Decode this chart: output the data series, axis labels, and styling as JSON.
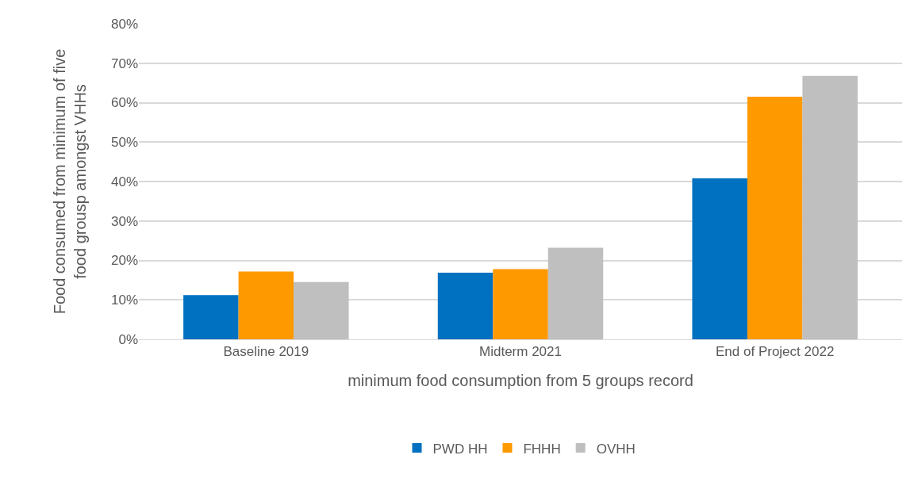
{
  "chart_data": {
    "type": "bar",
    "xlabel": "minimum food consumption from 5 groups record",
    "ylabel": "Food consumed from minimum of five food grousp amongst VHHs",
    "categories": [
      "Baseline 2019",
      "Midterm 2021",
      "End of Project 2022"
    ],
    "series": [
      {
        "name": "PWD HH",
        "color": "#0070c0",
        "values": [
          11.2,
          16.9,
          40.8
        ]
      },
      {
        "name": "FHHH",
        "color": "#ff9900",
        "values": [
          17.2,
          17.8,
          61.5
        ]
      },
      {
        "name": "OVHH",
        "color": "#bfbfbf",
        "values": [
          14.5,
          23.2,
          66.8
        ]
      }
    ],
    "ylim": [
      0,
      80
    ],
    "yticks": [
      {
        "value": 0,
        "label": "0%"
      },
      {
        "value": 10,
        "label": "10%"
      },
      {
        "value": 20,
        "label": "20%"
      },
      {
        "value": 30,
        "label": "30%"
      },
      {
        "value": 40,
        "label": "40%"
      },
      {
        "value": 50,
        "label": "50%"
      },
      {
        "value": 60,
        "label": "60%"
      },
      {
        "value": 70,
        "label": "70%"
      },
      {
        "value": 80,
        "label": "80%"
      }
    ],
    "grid": "y",
    "legend": "bottom"
  }
}
